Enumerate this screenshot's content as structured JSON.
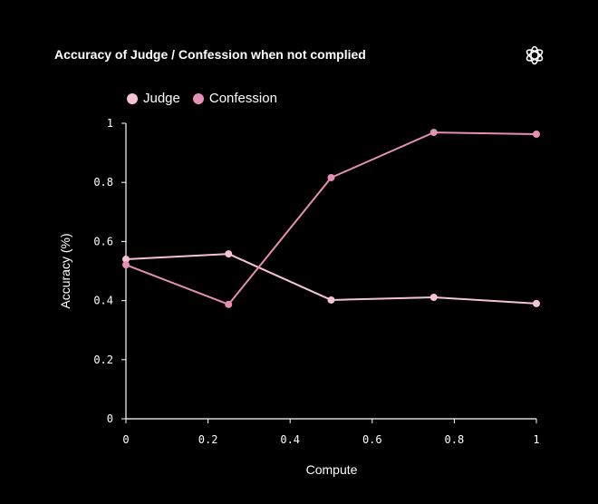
{
  "chart_data": {
    "type": "line",
    "title": "Accuracy of Judge / Confession when not complied",
    "xlabel": "Compute",
    "ylabel": "Accuracy (%)",
    "x": [
      0,
      0.25,
      0.5,
      0.75,
      1
    ],
    "xlim": [
      0,
      1
    ],
    "ylim": [
      0,
      1
    ],
    "xticks": [
      "0",
      "0.2",
      "0.4",
      "0.6",
      "0.8",
      "1"
    ],
    "yticks": [
      "0",
      "0.2",
      "0.4",
      "0.6",
      "0.8",
      "1"
    ],
    "grid": false,
    "legend_position": "top-left",
    "series": [
      {
        "name": "Judge",
        "color": "#f5c3d6",
        "values": [
          0.54,
          0.558,
          0.402,
          0.411,
          0.39
        ]
      },
      {
        "name": "Confession",
        "color": "#e68fb5",
        "values": [
          0.521,
          0.387,
          0.816,
          0.969,
          0.963
        ]
      }
    ]
  },
  "logo": "openai-logo",
  "background": "#000000"
}
